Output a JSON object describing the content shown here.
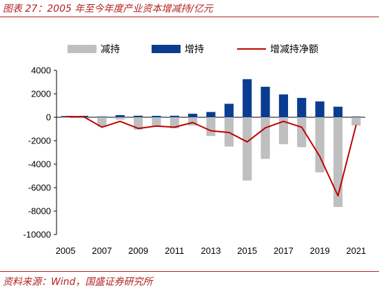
{
  "title": "图表 27：2005 年至今年度产业资本增减持/亿元",
  "source": "资料来源：Wind，国盛证券研究所",
  "colors": {
    "accent": "#b22222",
    "decrease": "#bfbfbf",
    "increase": "#0a3d91",
    "net": "#c00000"
  },
  "chart_data": {
    "type": "bar",
    "categories": [
      "2005",
      "2006",
      "2007",
      "2008",
      "2009",
      "2010",
      "2011",
      "2012",
      "2013",
      "2014",
      "2015",
      "2016",
      "2017",
      "2018",
      "2019",
      "2020",
      "2021"
    ],
    "x_tick_labels": [
      "2005",
      "2007",
      "2009",
      "2011",
      "2013",
      "2015",
      "2017",
      "2019",
      "2021"
    ],
    "y_ticks": [
      4000,
      2000,
      0,
      -2000,
      -4000,
      -6000,
      -8000,
      -10000
    ],
    "ylim": [
      -10000,
      4000
    ],
    "legend_position": "top",
    "series": [
      {
        "name": "减持",
        "type": "bar",
        "values": [
          -50,
          -80,
          -800,
          -200,
          -1050,
          -800,
          -950,
          -700,
          -1600,
          -2500,
          -5400,
          -3550,
          -2300,
          -2550,
          -4700,
          -7650,
          -700
        ]
      },
      {
        "name": "增持",
        "type": "bar",
        "values": [
          100,
          120,
          60,
          180,
          130,
          120,
          130,
          300,
          450,
          1150,
          3250,
          2600,
          1950,
          1650,
          1350,
          900,
          60
        ]
      },
      {
        "name": "增减持净额",
        "type": "line",
        "values": [
          60,
          50,
          -850,
          -350,
          -950,
          -750,
          -850,
          -450,
          -1150,
          -1300,
          -2100,
          -900,
          -350,
          -850,
          -3350,
          -6700,
          -650
        ]
      }
    ]
  }
}
